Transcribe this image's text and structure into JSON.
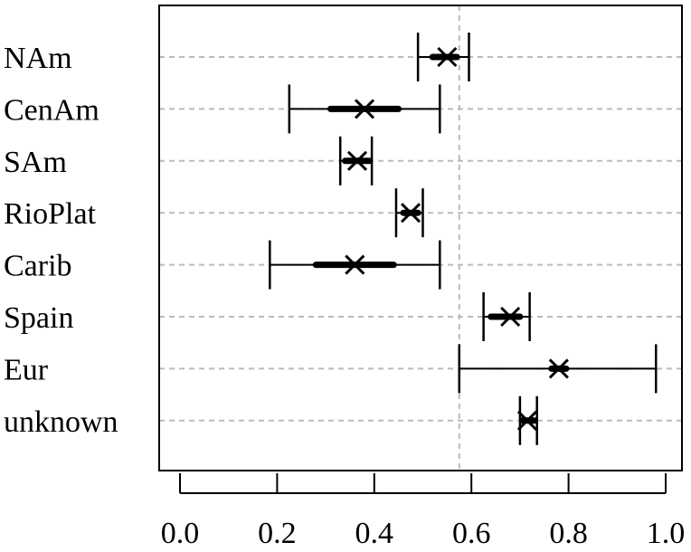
{
  "chart_data": {
    "type": "forest",
    "categories": [
      "NAm",
      "CenAm",
      "SAm",
      "RioPlat",
      "Carib",
      "Spain",
      "Eur",
      "unknown"
    ],
    "point": [
      0.55,
      0.38,
      0.365,
      0.475,
      0.36,
      0.68,
      0.78,
      0.715
    ],
    "ci_outer": [
      [
        0.49,
        0.595
      ],
      [
        0.225,
        0.535
      ],
      [
        0.33,
        0.395
      ],
      [
        0.445,
        0.5
      ],
      [
        0.185,
        0.535
      ],
      [
        0.625,
        0.72
      ],
      [
        0.575,
        0.98
      ],
      [
        0.7,
        0.735
      ]
    ],
    "ci_inner": [
      [
        0.52,
        0.57
      ],
      [
        0.31,
        0.45
      ],
      [
        0.34,
        0.39
      ],
      [
        0.46,
        0.49
      ],
      [
        0.28,
        0.44
      ],
      [
        0.64,
        0.7
      ],
      [
        0.765,
        0.795
      ],
      [
        0.705,
        0.73
      ]
    ],
    "reference_line": 0.575,
    "x_ticks": [
      "0.0",
      "0.2",
      "0.4",
      "0.6",
      "0.8",
      "1.0"
    ],
    "x_tick_values": [
      0.0,
      0.2,
      0.4,
      0.6,
      0.8,
      1.0
    ],
    "xlim": [
      0.0,
      1.0
    ],
    "title": "",
    "xlabel": "",
    "ylabel": "",
    "grid": "horizontal dashed"
  }
}
